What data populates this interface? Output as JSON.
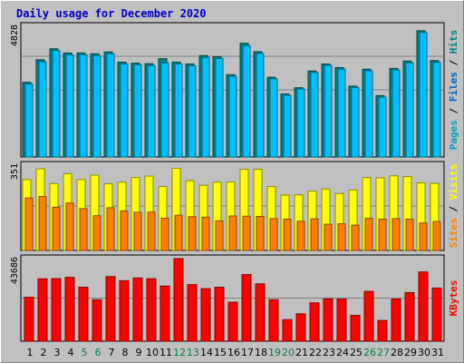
{
  "title": "Daily usage for December 2020",
  "chart_data": [
    {
      "type": "bar",
      "panel": "top",
      "max_label": "4828",
      "ylim": [
        0,
        5000
      ],
      "legend": [
        {
          "name": "Pages",
          "color": "#00a0c0"
        },
        {
          "name": "Files",
          "color": "#0060c0"
        },
        {
          "name": "Hits",
          "color": "#008080"
        }
      ],
      "categories": [
        "1",
        "2",
        "3",
        "4",
        "5",
        "6",
        "7",
        "8",
        "9",
        "10",
        "11",
        "12",
        "13",
        "14",
        "15",
        "16",
        "17",
        "18",
        "19",
        "20",
        "21",
        "22",
        "23",
        "24",
        "25",
        "26",
        "27",
        "28",
        "29",
        "30",
        "31"
      ],
      "series": [
        {
          "name": "Hits",
          "color": "#008080",
          "values": [
            2860,
            3720,
            4140,
            3980,
            3980,
            3950,
            4020,
            3630,
            3590,
            3570,
            3760,
            3630,
            3560,
            3880,
            3840,
            3150,
            4350,
            4030,
            3050,
            2410,
            2650,
            3290,
            3560,
            3420,
            2710,
            3360,
            2350,
            3390,
            3670,
            4828,
            3690
          ]
        },
        {
          "name": "Pages",
          "color": "#00c0ff",
          "values": [
            2790,
            3640,
            4070,
            3910,
            3910,
            3880,
            3950,
            3560,
            3530,
            3500,
            3600,
            3560,
            3490,
            3810,
            3770,
            3090,
            4260,
            3960,
            2990,
            2360,
            2600,
            3230,
            3510,
            3360,
            2660,
            3300,
            2290,
            3330,
            3600,
            4760,
            3620
          ]
        }
      ]
    },
    {
      "type": "bar",
      "panel": "middle",
      "max_label": "351",
      "ylim": [
        0,
        351
      ],
      "legend": [
        {
          "name": "Sites",
          "color": "#ff8000"
        },
        {
          "name": "Visits",
          "color": "#ffff00"
        }
      ],
      "categories": [
        "1",
        "2",
        "3",
        "4",
        "5",
        "6",
        "7",
        "8",
        "9",
        "10",
        "11",
        "12",
        "13",
        "14",
        "15",
        "16",
        "17",
        "18",
        "19",
        "20",
        "21",
        "22",
        "23",
        "24",
        "25",
        "26",
        "27",
        "28",
        "29",
        "30",
        "31"
      ],
      "series": [
        {
          "name": "Visits",
          "color": "#ffff00",
          "values": [
            292,
            336,
            275,
            316,
            292,
            310,
            274,
            281,
            300,
            306,
            263,
            338,
            287,
            268,
            281,
            282,
            334,
            334,
            263,
            228,
            229,
            244,
            253,
            234,
            249,
            300,
            299,
            307,
            304,
            278,
            276
          ]
        },
        {
          "name": "Sites",
          "color": "#ff8000",
          "values": [
            216,
            222,
            178,
            195,
            172,
            143,
            176,
            163,
            157,
            158,
            133,
            145,
            139,
            137,
            122,
            142,
            141,
            140,
            131,
            129,
            120,
            130,
            108,
            110,
            104,
            132,
            129,
            131,
            129,
            113,
            119
          ]
        }
      ]
    },
    {
      "type": "bar",
      "panel": "bottom",
      "max_label": "43686",
      "ylim": [
        0,
        43686
      ],
      "legend": [
        {
          "name": "KBytes",
          "color": "#ff0000"
        }
      ],
      "categories": [
        "1",
        "2",
        "3",
        "4",
        "5",
        "6",
        "7",
        "8",
        "9",
        "10",
        "11",
        "12",
        "13",
        "14",
        "15",
        "16",
        "17",
        "18",
        "19",
        "20",
        "21",
        "22",
        "23",
        "24",
        "25",
        "26",
        "27",
        "28",
        "29",
        "30",
        "31"
      ],
      "series": [
        {
          "name": "KBytes",
          "color": "#ff0000",
          "values": [
            23240,
            33020,
            33120,
            33780,
            28550,
            21920,
            34190,
            31990,
            33470,
            33070,
            29180,
            43686,
            29920,
            27800,
            28550,
            20620,
            35260,
            30350,
            21920,
            11400,
            14480,
            20300,
            22450,
            22280,
            13660,
            26350,
            11000,
            22290,
            25750,
            36650,
            28120
          ]
        }
      ]
    }
  ],
  "x_label_colors": {
    "weekday": "#000000",
    "weekend": "#008040"
  },
  "weekend_days": [
    "5",
    "6",
    "12",
    "13",
    "19",
    "20",
    "26",
    "27"
  ]
}
